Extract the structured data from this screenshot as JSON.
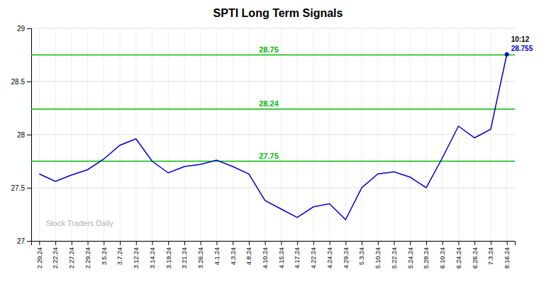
{
  "chart_data": {
    "type": "line",
    "title": "SPTI Long Term Signals",
    "categories": [
      "2.20.24",
      "2.22.24",
      "2.27.24",
      "2.29.24",
      "3.5.24",
      "3.7.24",
      "3.12.24",
      "3.14.24",
      "3.19.24",
      "3.21.24",
      "3.26.24",
      "4.1.24",
      "4.3.24",
      "4.8.24",
      "4.10.24",
      "4.15.24",
      "4.17.24",
      "4.22.24",
      "4.24.24",
      "4.29.24",
      "5.3.24",
      "5.10.24",
      "5.22.24",
      "5.24.24",
      "5.28.24",
      "6.10.24",
      "6.24.24",
      "6.26.24",
      "7.3.24",
      "8.16.24"
    ],
    "values": [
      27.63,
      27.56,
      27.62,
      27.67,
      27.77,
      27.9,
      27.96,
      27.75,
      27.64,
      27.7,
      27.72,
      27.76,
      27.7,
      27.63,
      27.38,
      27.3,
      27.22,
      27.32,
      27.35,
      27.2,
      27.5,
      27.63,
      27.65,
      27.6,
      27.5,
      27.78,
      28.08,
      27.97,
      28.05,
      28.755
    ],
    "color": "#0000cc",
    "hlines": {
      "values": [
        27.75,
        28.24,
        28.75
      ],
      "color": "#00bb00"
    },
    "annotations": [
      {
        "text": "10:12",
        "color": "#000000"
      },
      {
        "text": "28.755",
        "color": "#0000cc"
      }
    ],
    "watermark": {
      "text": "Stock Traders Daily",
      "color": "#b0b0b0"
    },
    "ylim": [
      27.0,
      29.0
    ],
    "yticks": [
      27,
      27.5,
      28,
      28.5,
      29
    ],
    "grid": true
  }
}
